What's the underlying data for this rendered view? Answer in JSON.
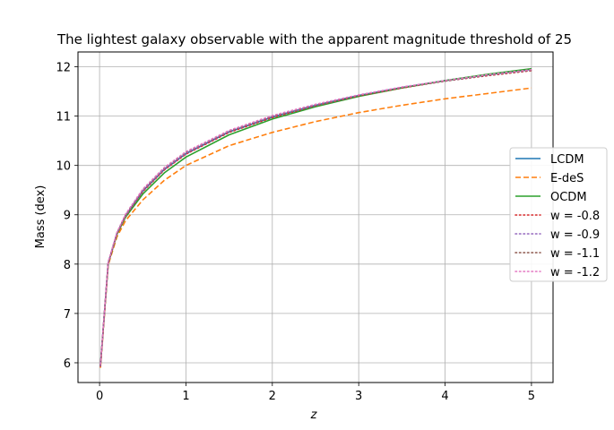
{
  "chart_data": {
    "type": "line",
    "title": "The lightest galaxy observable with the apparent magnitude threshold of 25",
    "xlabel": "z",
    "ylabel": "Mass (dex)",
    "xlim": [
      -0.25,
      5.25
    ],
    "ylim": [
      5.6,
      12.3
    ],
    "xticks": [
      0,
      1,
      2,
      3,
      4,
      5
    ],
    "yticks": [
      6,
      7,
      8,
      9,
      10,
      11,
      12
    ],
    "grid": true,
    "legend_position": "center-right",
    "x": [
      0.01,
      0.1,
      0.2,
      0.3,
      0.5,
      0.75,
      1.0,
      1.5,
      2.0,
      2.5,
      3.0,
      3.5,
      4.0,
      4.5,
      5.0
    ],
    "series": [
      {
        "name": "LCDM",
        "color": "#1f77b4",
        "style": "solid",
        "values": [
          5.95,
          8.02,
          8.62,
          8.98,
          9.48,
          9.92,
          10.24,
          10.68,
          10.98,
          11.22,
          11.42,
          11.58,
          11.72,
          11.84,
          11.95
        ]
      },
      {
        "name": "E-deS",
        "color": "#ff7f0e",
        "style": "dashed",
        "values": [
          5.9,
          7.98,
          8.55,
          8.88,
          9.3,
          9.7,
          10.0,
          10.4,
          10.67,
          10.89,
          11.07,
          11.22,
          11.35,
          11.46,
          11.57
        ]
      },
      {
        "name": "OCDM",
        "color": "#2ca02c",
        "style": "solid",
        "values": [
          5.95,
          8.01,
          8.6,
          8.95,
          9.42,
          9.85,
          10.17,
          10.62,
          10.94,
          11.19,
          11.4,
          11.57,
          11.72,
          11.85,
          11.96
        ]
      },
      {
        "name": "w = -0.8",
        "color": "#d62728",
        "style": "dotted",
        "values": [
          5.93,
          8.01,
          8.61,
          8.97,
          9.47,
          9.91,
          10.23,
          10.67,
          10.97,
          11.21,
          11.41,
          11.57,
          11.71,
          11.82,
          11.92
        ]
      },
      {
        "name": "w = -0.9",
        "color": "#9467bd",
        "style": "dotted",
        "values": [
          5.94,
          8.02,
          8.62,
          8.98,
          9.49,
          9.93,
          10.25,
          10.69,
          10.99,
          11.22,
          11.42,
          11.58,
          11.71,
          11.83,
          11.93
        ]
      },
      {
        "name": "w = -1.1",
        "color": "#8c564b",
        "style": "dotted",
        "values": [
          5.96,
          8.03,
          8.63,
          9.0,
          9.51,
          9.95,
          10.27,
          10.7,
          11.0,
          11.23,
          11.42,
          11.58,
          11.71,
          11.83,
          11.93
        ]
      },
      {
        "name": "w = -1.2",
        "color": "#e377c2",
        "style": "dotted",
        "values": [
          5.97,
          8.04,
          8.64,
          9.01,
          9.52,
          9.96,
          10.28,
          10.71,
          11.01,
          11.24,
          11.43,
          11.59,
          11.72,
          11.84,
          11.94
        ]
      }
    ]
  }
}
